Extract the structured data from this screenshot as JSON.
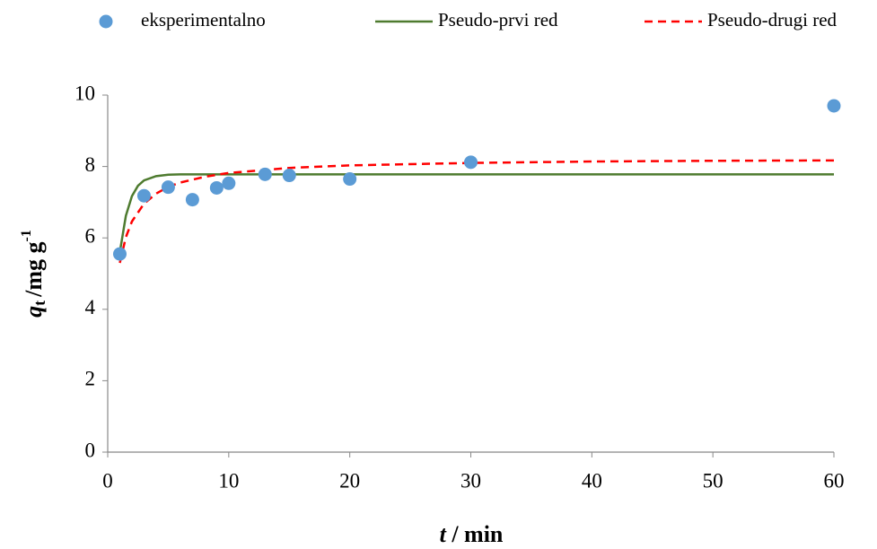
{
  "chart_data": {
    "type": "scatter-line",
    "xlabel": {
      "var": "t",
      "unit": "/ min"
    },
    "ylabel": {
      "var": "q",
      "sub": "t",
      "unit": "/mg g",
      "sup": "-1"
    },
    "xlim": [
      0,
      60
    ],
    "xticks": [
      0,
      10,
      20,
      30,
      40,
      50,
      60
    ],
    "ylim": [
      0,
      10
    ],
    "yticks": [
      0,
      2,
      4,
      6,
      8,
      10
    ],
    "grid": false,
    "legend": "top",
    "series": [
      {
        "name": "eksperimentalno",
        "kind": "scatter",
        "color": "#5b9bd5",
        "x": [
          1,
          3,
          5,
          7,
          9,
          10,
          13,
          15,
          20,
          30,
          60
        ],
        "values": [
          5.55,
          7.18,
          7.42,
          7.07,
          7.4,
          7.53,
          7.78,
          7.75,
          7.65,
          8.12,
          9.7
        ]
      },
      {
        "name": "Pseudo-prvi red",
        "kind": "line",
        "color": "#4e7b2f",
        "dash": false,
        "x": [
          1,
          1.5,
          2,
          2.5,
          3,
          4,
          5,
          6,
          8,
          10,
          15,
          20,
          30,
          40,
          50,
          60
        ],
        "values": [
          5.6,
          6.62,
          7.17,
          7.46,
          7.61,
          7.73,
          7.77,
          7.78,
          7.78,
          7.78,
          7.78,
          7.78,
          7.78,
          7.78,
          7.78,
          7.78
        ]
      },
      {
        "name": "Pseudo-drugi red",
        "kind": "line",
        "color": "#ff0000",
        "dash": true,
        "x": [
          1,
          1.5,
          2,
          3,
          4,
          5,
          6,
          8,
          10,
          15,
          20,
          30,
          40,
          50,
          60
        ],
        "values": [
          5.3,
          6.02,
          6.46,
          6.96,
          7.24,
          7.43,
          7.55,
          7.71,
          7.82,
          7.96,
          8.03,
          8.1,
          8.14,
          8.16,
          8.17
        ]
      }
    ]
  }
}
